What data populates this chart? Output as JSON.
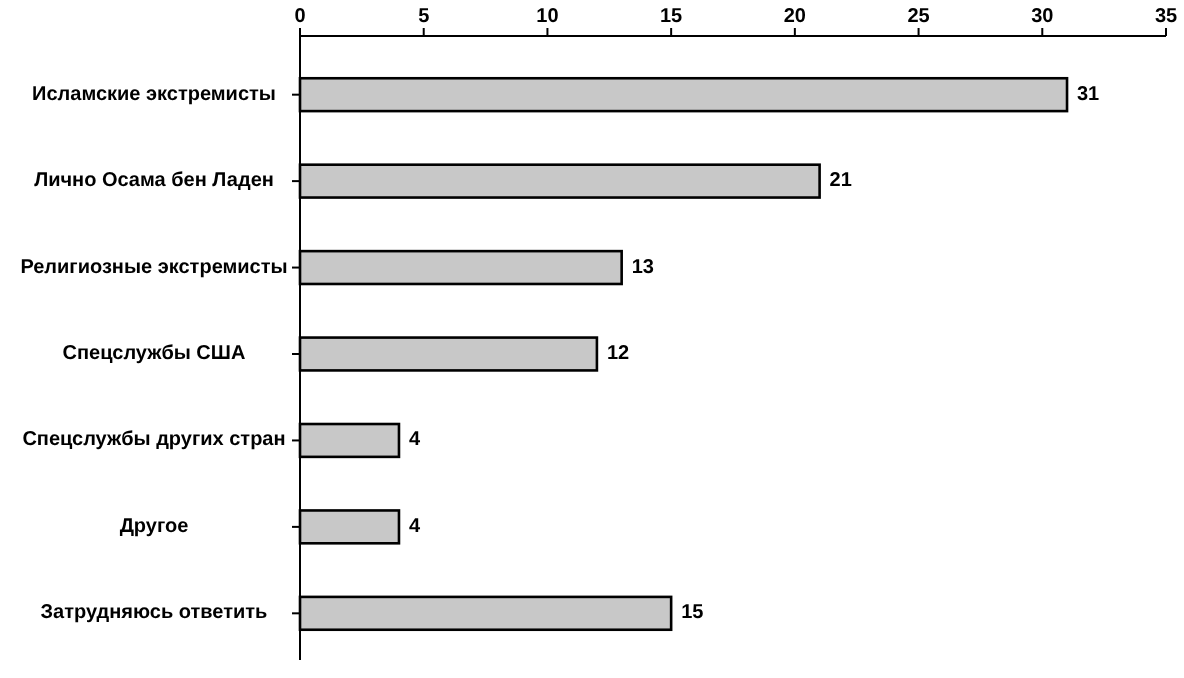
{
  "chart_data": {
    "type": "bar",
    "orientation": "horizontal",
    "categories": [
      "Исламские экстремисты",
      "Лично Осама бен Ладен",
      "Религиозные экстремисты",
      "Спецслужбы США",
      "Спецслужбы других стран",
      "Другое",
      "Затрудняюсь ответить"
    ],
    "values": [
      31,
      21,
      13,
      12,
      4,
      4,
      15
    ],
    "color": "#c8c8c8",
    "xlim": [
      0,
      35
    ],
    "xticks": [
      0,
      5,
      10,
      15,
      20,
      25,
      30,
      35
    ],
    "data_labels": true,
    "grid": false
  }
}
